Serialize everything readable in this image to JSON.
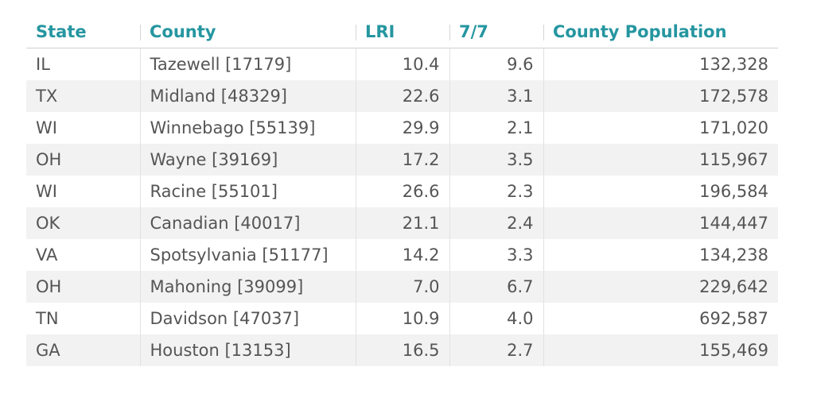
{
  "table": {
    "headers": [
      "State",
      "County",
      "LRI",
      "7/7",
      "County Population"
    ],
    "rows": [
      [
        "IL",
        "Tazewell [17179]",
        "10.4",
        "9.6",
        "132,328"
      ],
      [
        "TX",
        "Midland [48329]",
        "22.6",
        "3.1",
        "172,578"
      ],
      [
        "WI",
        "Winnebago [55139]",
        "29.9",
        "2.1",
        "171,020"
      ],
      [
        "OH",
        "Wayne [39169]",
        "17.2",
        "3.5",
        "115,967"
      ],
      [
        "WI",
        "Racine [55101]",
        "26.6",
        "2.3",
        "196,584"
      ],
      [
        "OK",
        "Canadian [40017]",
        "21.1",
        "2.4",
        "144,447"
      ],
      [
        "VA",
        "Spotsylvania [51177]",
        "14.2",
        "3.3",
        "134,238"
      ],
      [
        "OH",
        "Mahoning [39099]",
        "7.0",
        "6.7",
        "229,642"
      ],
      [
        "TN",
        "Davidson [47037]",
        "10.9",
        "4.0",
        "692,587"
      ],
      [
        "GA",
        "Houston [13153]",
        "16.5",
        "2.7",
        "155,469"
      ]
    ]
  }
}
